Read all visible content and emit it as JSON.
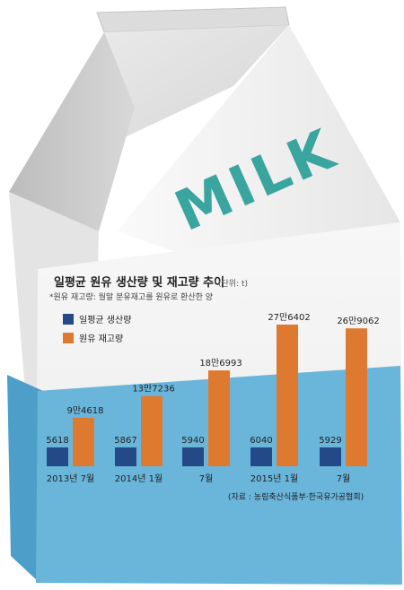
{
  "brand": {
    "text": "MILK",
    "color": "#3aa59e"
  },
  "title": "일평균 원유 생산량 및 재고량 추이",
  "unit": "(단위: t)",
  "note": "*원유 재고량: 월말 분유재고를 원유로 환산한 양",
  "source": "(자료 : 농림축산식품부·한국유가공협회)",
  "colors": {
    "production": "#234a86",
    "inventory": "#de7a30",
    "water": "#6ab6db"
  },
  "chart_data": {
    "type": "bar",
    "categories": [
      "2013년 7월",
      "2014년 1월",
      "7월",
      "2015년 1월",
      "7월"
    ],
    "series": [
      {
        "name": "일평균 생산량",
        "values": [
          5618,
          5867,
          5940,
          6040,
          5929
        ],
        "labels": [
          "5618",
          "5867",
          "5940",
          "6040",
          "5929"
        ]
      },
      {
        "name": "원유 재고량",
        "values": [
          94618,
          137236,
          186993,
          276402,
          269062
        ],
        "labels": [
          "9만4618",
          "13만7236",
          "18만6993",
          "27만6402",
          "26만9062"
        ]
      }
    ],
    "legend": "top-left",
    "grid": false
  }
}
